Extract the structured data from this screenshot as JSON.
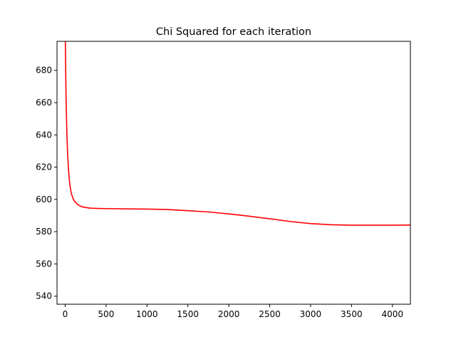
{
  "chart_data": {
    "type": "line",
    "title": "Chi Squared for each iteration",
    "xlabel": "",
    "ylabel": "",
    "xlim": [
      -100,
      4220
    ],
    "ylim": [
      535,
      698
    ],
    "grid": false,
    "x_ticks": [
      0,
      500,
      1000,
      1500,
      2000,
      2500,
      3000,
      3500,
      4000
    ],
    "y_ticks": [
      540,
      560,
      580,
      600,
      620,
      640,
      660,
      680
    ],
    "series": [
      {
        "color": "#ff0000",
        "x": [
          2,
          10,
          20,
          30,
          40,
          50,
          60,
          70,
          80,
          90,
          100,
          120,
          150,
          200,
          250,
          300,
          400,
          500,
          750,
          1000,
          1250,
          1500,
          1750,
          2000,
          2250,
          2500,
          2750,
          3000,
          3250,
          3500,
          3750,
          4000,
          4220
        ],
        "y": [
          698,
          665,
          642,
          628,
          619,
          612.5,
          608,
          605,
          603,
          601.5,
          600,
          598.5,
          597,
          595.5,
          595,
          594.6,
          594.4,
          594.3,
          594.1,
          594,
          593.7,
          593,
          592.2,
          591,
          589.6,
          588,
          586.3,
          585,
          584.3,
          584,
          584,
          584,
          584.1
        ]
      }
    ]
  }
}
